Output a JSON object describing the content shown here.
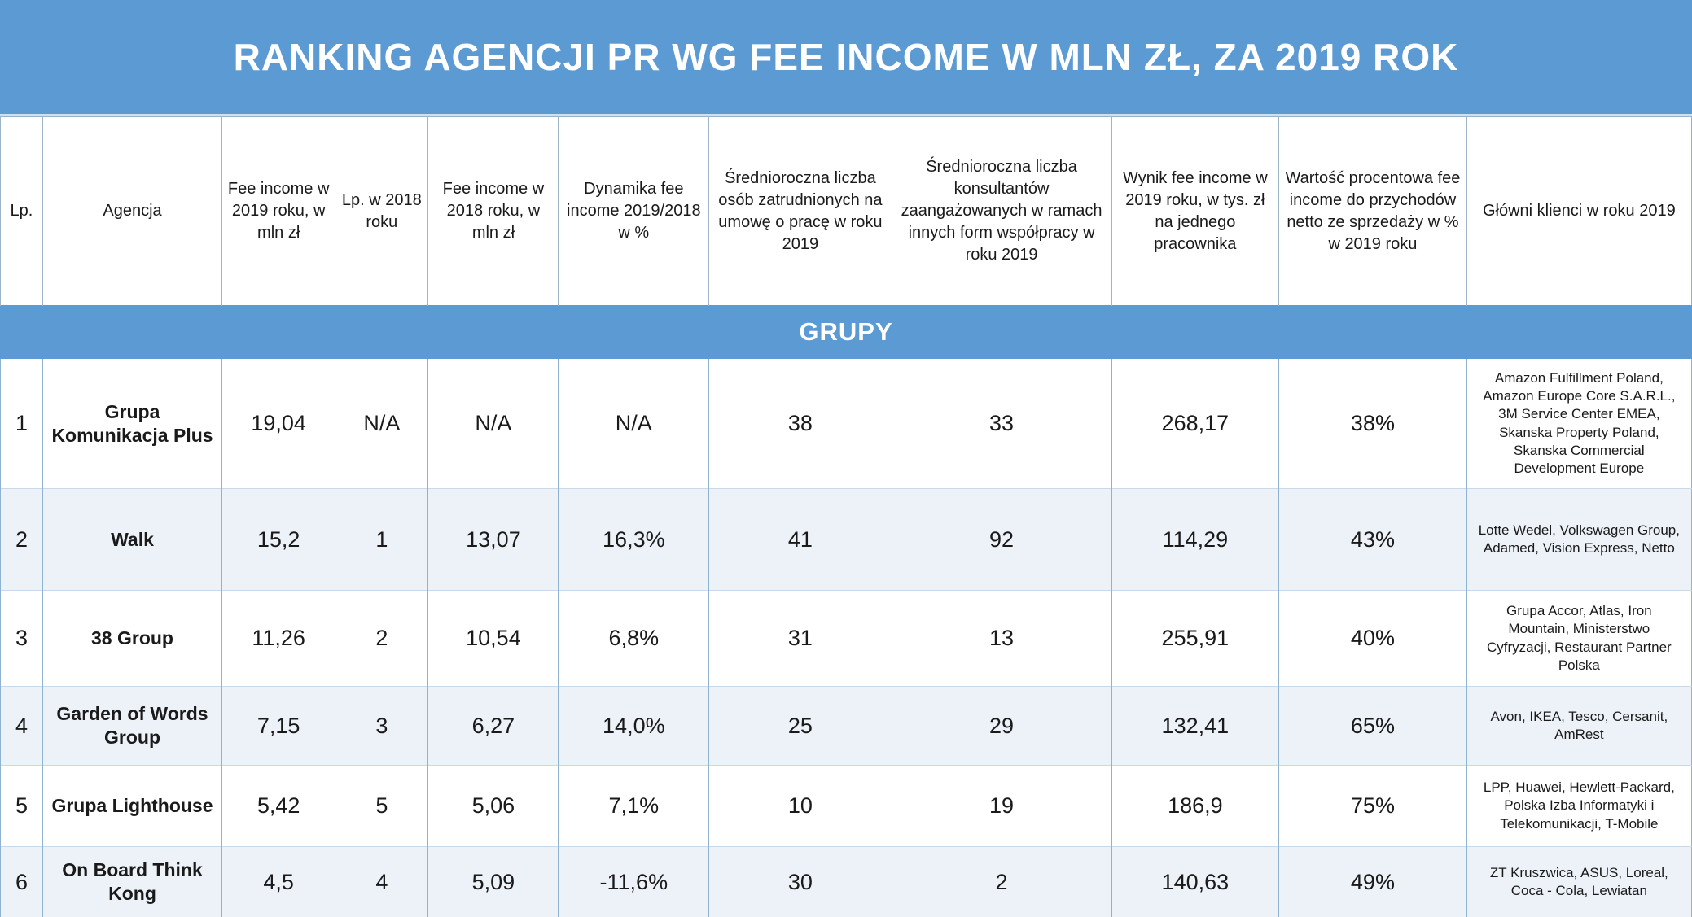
{
  "colors": {
    "band_blue": "#5b9ad2",
    "zebra_row": "#edf2f8",
    "grid_line": "#8fb3d1",
    "text_color": "#1a1a1a",
    "band_text": "#ffffff"
  },
  "chart_data": {
    "type": "table",
    "title": "RANKING AGENCJI PR WG FEE INCOME W MLN ZŁ, ZA 2019 ROK",
    "section": "GRUPY",
    "columns": [
      "Lp.",
      "Agencja",
      "Fee income w 2019 roku, w mln zł",
      "Lp. w 2018 roku",
      "Fee income w 2018 roku, w mln zł",
      "Dynamika fee income 2019/2018 w %",
      "Średnioroczna liczba osób zatrudnionych na umowę o pracę w roku 2019",
      "Średnioroczna liczba konsultantów zaangażowanych w ramach innych form współpracy w roku 2019",
      "Wynik fee income w 2019 roku, w tys. zł na jednego pracownika",
      "Wartość procentowa fee income do przychodów netto ze sprzedaży w % w 2019 roku",
      "Główni klienci w roku 2019"
    ],
    "rows": [
      [
        "1",
        "Grupa Komunikacja Plus",
        "19,04",
        "N/A",
        "N/A",
        "N/A",
        "38",
        "33",
        "268,17",
        "38%",
        "Amazon Fulfillment Poland, Amazon Europe Core S.A.R.L., 3M Service Center EMEA, Skanska Property Poland, Skanska Commercial Development Europe"
      ],
      [
        "2",
        "Walk",
        "15,2",
        "1",
        "13,07",
        "16,3%",
        "41",
        "92",
        "114,29",
        "43%",
        "Lotte Wedel, Volkswagen Group, Adamed, Vision Express, Netto"
      ],
      [
        "3",
        "38 Group",
        "11,26",
        "2",
        "10,54",
        "6,8%",
        "31",
        "13",
        "255,91",
        "40%",
        "Grupa Accor, Atlas, Iron Mountain, Ministerstwo Cyfryzacji, Restaurant Partner Polska"
      ],
      [
        "4",
        "Garden of Words Group",
        "7,15",
        "3",
        "6,27",
        "14,0%",
        "25",
        "29",
        "132,41",
        "65%",
        "Avon, IKEA, Tesco, Cersanit, AmRest"
      ],
      [
        "5",
        "Grupa Lighthouse",
        "5,42",
        "5",
        "5,06",
        "7,1%",
        "10",
        "19",
        "186,9",
        "75%",
        "LPP, Huawei, Hewlett-Packard, Polska Izba Informatyki i Telekomunikacji, T-Mobile"
      ],
      [
        "6",
        "On Board Think Kong",
        "4,5",
        "4",
        "5,09",
        "-11,6%",
        "30",
        "2",
        "140,63",
        "49%",
        "ZT Kruszwica, ASUS, Loreal, Coca - Cola, Lewiatan"
      ]
    ]
  }
}
